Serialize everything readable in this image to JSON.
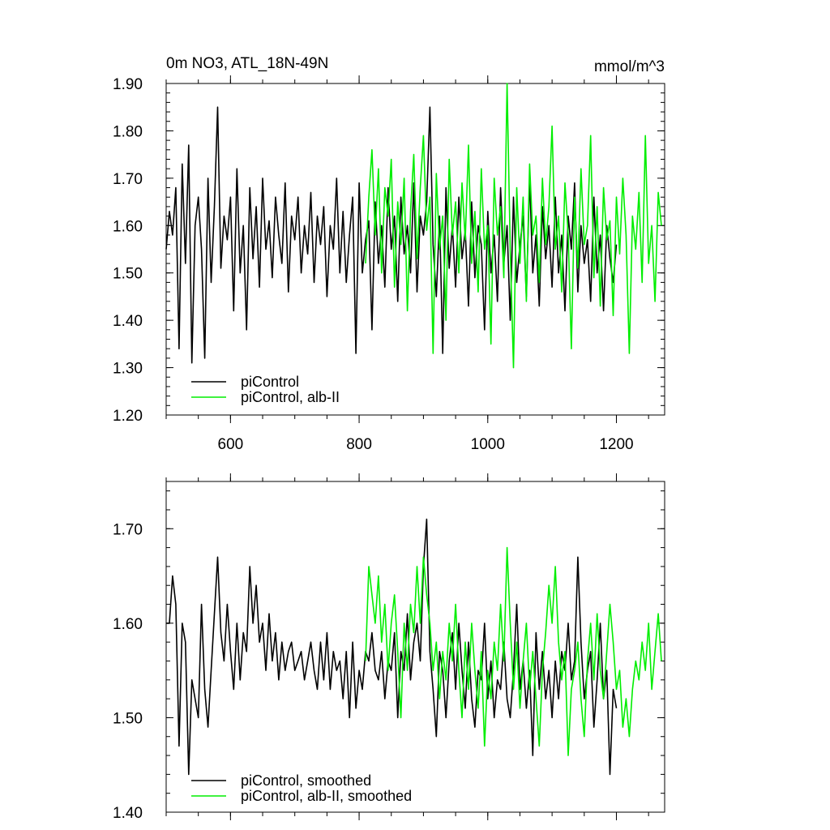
{
  "colors": {
    "piControl": "#000000",
    "albII": "#00ee00"
  },
  "chart_data": [
    {
      "type": "line",
      "title": "0m NO3, ATL_18N-49N",
      "units": "mmol/m^3",
      "xlim": [
        500,
        1275
      ],
      "ylim": [
        1.2,
        1.9
      ],
      "xticks": [
        600,
        800,
        1000,
        1200
      ],
      "xtick_labels": [
        "600",
        "800",
        "1000",
        "1200"
      ],
      "yticks": [
        1.2,
        1.3,
        1.4,
        1.5,
        1.6,
        1.7,
        1.8,
        1.9
      ],
      "ytick_labels": [
        "1.20",
        "1.30",
        "1.40",
        "1.50",
        "1.60",
        "1.70",
        "1.80",
        "1.90"
      ],
      "legend": "bottom-left",
      "series": [
        {
          "name": "piControl",
          "color": "#000000",
          "x": [
            500,
            505,
            510,
            515,
            520,
            525,
            530,
            535,
            540,
            545,
            550,
            555,
            560,
            565,
            570,
            575,
            580,
            585,
            590,
            595,
            600,
            605,
            610,
            615,
            620,
            625,
            630,
            635,
            640,
            645,
            650,
            655,
            660,
            665,
            670,
            675,
            680,
            685,
            690,
            695,
            700,
            705,
            710,
            715,
            720,
            725,
            730,
            735,
            740,
            745,
            750,
            755,
            760,
            765,
            770,
            775,
            780,
            785,
            790,
            795,
            800,
            805,
            810,
            815,
            820,
            825,
            830,
            835,
            840,
            845,
            850,
            855,
            860,
            865,
            870,
            875,
            880,
            885,
            890,
            895,
            900,
            905,
            910,
            915,
            920,
            925,
            930,
            935,
            940,
            945,
            950,
            955,
            960,
            965,
            970,
            975,
            980,
            985,
            990,
            995,
            1000,
            1005,
            1010,
            1015,
            1020,
            1025,
            1030,
            1035,
            1040,
            1045,
            1050,
            1055,
            1060,
            1065,
            1070,
            1075,
            1080,
            1085,
            1090,
            1095,
            1100,
            1105,
            1110,
            1115,
            1120,
            1125,
            1130,
            1135,
            1140,
            1145,
            1150,
            1155,
            1160,
            1165,
            1170,
            1175,
            1180,
            1185,
            1190,
            1195,
            1200
          ],
          "y": [
            1.55,
            1.63,
            1.58,
            1.68,
            1.34,
            1.73,
            1.52,
            1.77,
            1.31,
            1.6,
            1.66,
            1.55,
            1.32,
            1.7,
            1.48,
            1.64,
            1.85,
            1.51,
            1.62,
            1.57,
            1.66,
            1.42,
            1.72,
            1.5,
            1.6,
            1.38,
            1.68,
            1.53,
            1.64,
            1.47,
            1.7,
            1.55,
            1.61,
            1.49,
            1.66,
            1.58,
            1.52,
            1.69,
            1.46,
            1.62,
            1.57,
            1.66,
            1.5,
            1.6,
            1.54,
            1.67,
            1.48,
            1.62,
            1.56,
            1.64,
            1.45,
            1.6,
            1.55,
            1.7,
            1.5,
            1.63,
            1.48,
            1.58,
            1.66,
            1.33,
            1.69,
            1.5,
            1.57,
            1.61,
            1.38,
            1.65,
            1.52,
            1.6,
            1.47,
            1.68,
            1.55,
            1.62,
            1.44,
            1.66,
            1.54,
            1.6,
            1.5,
            1.69,
            1.46,
            1.62,
            1.58,
            1.65,
            1.85,
            1.56,
            1.45,
            1.62,
            1.33,
            1.68,
            1.51,
            1.6,
            1.47,
            1.66,
            1.53,
            1.59,
            1.43,
            1.65,
            1.49,
            1.6,
            1.56,
            1.38,
            1.63,
            1.5,
            1.58,
            1.44,
            1.68,
            1.52,
            1.6,
            1.4,
            1.66,
            1.48,
            1.56,
            1.62,
            1.45,
            1.7,
            1.5,
            1.58,
            1.43,
            1.64,
            1.53,
            1.6,
            1.47,
            1.66,
            1.5,
            1.58,
            1.42,
            1.62,
            1.55,
            1.69,
            1.46,
            1.6,
            1.52,
            1.57,
            1.44,
            1.66,
            1.5,
            1.58,
            1.42,
            1.6,
            1.53,
            1.48,
            1.56
          ]
        },
        {
          "name": "piControl, alb-II",
          "color": "#00ee00",
          "x": [
            810,
            815,
            820,
            825,
            830,
            835,
            840,
            845,
            850,
            855,
            860,
            865,
            870,
            875,
            880,
            885,
            890,
            895,
            900,
            905,
            910,
            915,
            920,
            925,
            930,
            935,
            940,
            945,
            950,
            955,
            960,
            965,
            970,
            975,
            980,
            985,
            990,
            995,
            1000,
            1005,
            1010,
            1015,
            1020,
            1025,
            1030,
            1035,
            1040,
            1045,
            1050,
            1055,
            1060,
            1065,
            1070,
            1075,
            1080,
            1085,
            1090,
            1095,
            1100,
            1105,
            1110,
            1115,
            1120,
            1125,
            1130,
            1135,
            1140,
            1145,
            1150,
            1155,
            1160,
            1165,
            1170,
            1175,
            1180,
            1185,
            1190,
            1195,
            1200,
            1205,
            1210,
            1215,
            1220,
            1225,
            1230,
            1235,
            1240,
            1245,
            1250,
            1255,
            1260,
            1265,
            1270
          ],
          "y": [
            1.52,
            1.66,
            1.76,
            1.58,
            1.72,
            1.5,
            1.68,
            1.62,
            1.74,
            1.47,
            1.65,
            1.56,
            1.7,
            1.42,
            1.63,
            1.75,
            1.53,
            1.68,
            1.79,
            1.59,
            1.66,
            1.33,
            1.71,
            1.55,
            1.62,
            1.4,
            1.74,
            1.58,
            1.65,
            1.5,
            1.69,
            1.57,
            1.77,
            1.52,
            1.63,
            1.46,
            1.72,
            1.55,
            1.6,
            1.35,
            1.7,
            1.58,
            1.64,
            1.49,
            1.9,
            1.55,
            1.3,
            1.68,
            1.52,
            1.66,
            1.44,
            1.73,
            1.58,
            1.62,
            1.48,
            1.7,
            1.56,
            1.64,
            1.81,
            1.55,
            1.62,
            1.46,
            1.69,
            1.58,
            1.34,
            1.66,
            1.51,
            1.72,
            1.56,
            1.6,
            1.79,
            1.49,
            1.64,
            1.43,
            1.68,
            1.57,
            1.61,
            1.41,
            1.66,
            1.54,
            1.7,
            1.58,
            1.33,
            1.62,
            1.55,
            1.67,
            1.48,
            1.79,
            1.52,
            1.6,
            1.44,
            1.67,
            1.6
          ]
        }
      ]
    },
    {
      "type": "line",
      "xlim": [
        500,
        1275
      ],
      "ylim": [
        1.4,
        1.75
      ],
      "xticks": [
        600,
        800,
        1000,
        1200
      ],
      "yticks": [
        1.4,
        1.5,
        1.6,
        1.7
      ],
      "ytick_labels": [
        "1.40",
        "1.50",
        "1.60",
        "1.70"
      ],
      "legend": "bottom-left",
      "series": [
        {
          "name": "piControl, smoothed",
          "color": "#000000",
          "x": [
            500,
            505,
            510,
            515,
            520,
            525,
            530,
            535,
            540,
            545,
            550,
            555,
            560,
            565,
            570,
            575,
            580,
            585,
            590,
            595,
            600,
            605,
            610,
            615,
            620,
            625,
            630,
            635,
            640,
            645,
            650,
            655,
            660,
            665,
            670,
            675,
            680,
            685,
            690,
            695,
            700,
            705,
            710,
            715,
            720,
            725,
            730,
            735,
            740,
            745,
            750,
            755,
            760,
            765,
            770,
            775,
            780,
            785,
            790,
            795,
            800,
            805,
            810,
            815,
            820,
            825,
            830,
            835,
            840,
            845,
            850,
            855,
            860,
            865,
            870,
            875,
            880,
            885,
            890,
            895,
            900,
            905,
            910,
            915,
            920,
            925,
            930,
            935,
            940,
            945,
            950,
            955,
            960,
            965,
            970,
            975,
            980,
            985,
            990,
            995,
            1000,
            1005,
            1010,
            1015,
            1020,
            1025,
            1030,
            1035,
            1040,
            1045,
            1050,
            1055,
            1060,
            1065,
            1070,
            1075,
            1080,
            1085,
            1090,
            1095,
            1100,
            1105,
            1110,
            1115,
            1120,
            1125,
            1130,
            1135,
            1140,
            1145,
            1150,
            1155,
            1160,
            1165,
            1170,
            1175,
            1180,
            1185,
            1190,
            1195,
            1200
          ],
          "y": [
            1.6,
            1.6,
            1.65,
            1.62,
            1.47,
            1.6,
            1.58,
            1.44,
            1.54,
            1.52,
            1.5,
            1.62,
            1.53,
            1.49,
            1.55,
            1.61,
            1.67,
            1.59,
            1.56,
            1.62,
            1.57,
            1.53,
            1.6,
            1.54,
            1.59,
            1.57,
            1.66,
            1.6,
            1.64,
            1.58,
            1.6,
            1.55,
            1.61,
            1.56,
            1.59,
            1.54,
            1.58,
            1.55,
            1.57,
            1.58,
            1.55,
            1.56,
            1.57,
            1.54,
            1.56,
            1.58,
            1.55,
            1.53,
            1.58,
            1.54,
            1.59,
            1.53,
            1.57,
            1.55,
            1.56,
            1.52,
            1.57,
            1.5,
            1.58,
            1.51,
            1.55,
            1.53,
            1.57,
            1.56,
            1.59,
            1.55,
            1.54,
            1.57,
            1.52,
            1.56,
            1.55,
            1.59,
            1.5,
            1.57,
            1.55,
            1.61,
            1.54,
            1.58,
            1.6,
            1.56,
            1.66,
            1.71,
            1.57,
            1.53,
            1.48,
            1.57,
            1.55,
            1.5,
            1.56,
            1.59,
            1.53,
            1.6,
            1.55,
            1.51,
            1.58,
            1.52,
            1.49,
            1.55,
            1.54,
            1.6,
            1.52,
            1.56,
            1.5,
            1.54,
            1.53,
            1.58,
            1.52,
            1.5,
            1.55,
            1.62,
            1.53,
            1.56,
            1.51,
            1.55,
            1.46,
            1.59,
            1.53,
            1.57,
            1.52,
            1.55,
            1.5,
            1.56,
            1.52,
            1.57,
            1.55,
            1.6,
            1.54,
            1.56,
            1.67,
            1.58,
            1.52,
            1.55,
            1.57,
            1.49,
            1.54,
            1.6,
            1.52,
            1.55,
            1.44,
            1.53,
            1.51
          ]
        },
        {
          "name": "piControl, alb-II, smoothed",
          "color": "#00ee00",
          "x": [
            810,
            815,
            820,
            825,
            830,
            835,
            840,
            845,
            850,
            855,
            860,
            865,
            870,
            875,
            880,
            885,
            890,
            895,
            900,
            905,
            910,
            915,
            920,
            925,
            930,
            935,
            940,
            945,
            950,
            955,
            960,
            965,
            970,
            975,
            980,
            985,
            990,
            995,
            1000,
            1005,
            1010,
            1015,
            1020,
            1025,
            1030,
            1035,
            1040,
            1045,
            1050,
            1055,
            1060,
            1065,
            1070,
            1075,
            1080,
            1085,
            1090,
            1095,
            1100,
            1105,
            1110,
            1115,
            1120,
            1125,
            1130,
            1135,
            1140,
            1145,
            1150,
            1155,
            1160,
            1165,
            1170,
            1175,
            1180,
            1185,
            1190,
            1195,
            1200,
            1205,
            1210,
            1215,
            1220,
            1225,
            1230,
            1235,
            1240,
            1245,
            1250,
            1255,
            1260,
            1265,
            1270
          ],
          "y": [
            1.56,
            1.66,
            1.63,
            1.6,
            1.65,
            1.58,
            1.62,
            1.55,
            1.6,
            1.63,
            1.57,
            1.5,
            1.6,
            1.55,
            1.62,
            1.59,
            1.66,
            1.6,
            1.67,
            1.63,
            1.6,
            1.55,
            1.58,
            1.52,
            1.57,
            1.54,
            1.6,
            1.56,
            1.62,
            1.55,
            1.5,
            1.58,
            1.53,
            1.6,
            1.55,
            1.51,
            1.57,
            1.47,
            1.55,
            1.52,
            1.58,
            1.55,
            1.62,
            1.56,
            1.68,
            1.6,
            1.53,
            1.58,
            1.51,
            1.56,
            1.6,
            1.53,
            1.57,
            1.52,
            1.47,
            1.55,
            1.59,
            1.64,
            1.6,
            1.66,
            1.58,
            1.54,
            1.57,
            1.46,
            1.53,
            1.55,
            1.58,
            1.52,
            1.48,
            1.56,
            1.6,
            1.54,
            1.61,
            1.55,
            1.52,
            1.57,
            1.62,
            1.58,
            1.53,
            1.55,
            1.49,
            1.52,
            1.48,
            1.53,
            1.56,
            1.54,
            1.58,
            1.55,
            1.6,
            1.53,
            1.57,
            1.61,
            1.56
          ]
        }
      ]
    }
  ]
}
